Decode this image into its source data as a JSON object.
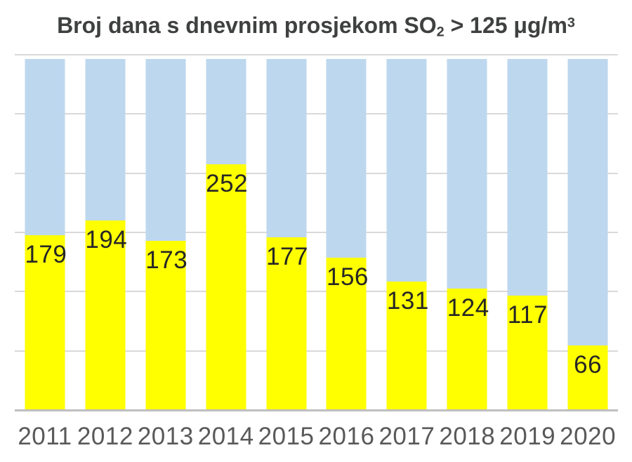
{
  "chart_data": {
    "type": "bar",
    "stacked": true,
    "title_parts": {
      "text": "Broj dana s dnevnim prosjekom SO",
      "subscript": "2",
      "tail": " > 125 ",
      "unit": "μg/m",
      "superscript": "3"
    },
    "categories": [
      "2011",
      "2012",
      "2013",
      "2014",
      "2015",
      "2016",
      "2017",
      "2018",
      "2019",
      "2020"
    ],
    "series": [
      {
        "role": "value",
        "color": "#ffff00",
        "values": [
          179,
          194,
          173,
          252,
          177,
          156,
          131,
          124,
          117,
          66
        ],
        "data_labels": true,
        "label_color": "#262626"
      },
      {
        "role": "remainder",
        "color": "#bdd7ee"
      }
    ],
    "xlabel": "",
    "ylabel": "",
    "ylim": [
      0,
      360
    ],
    "y_gridline_interval": 60,
    "y_tick_labels_visible": false,
    "grid": "horizontal",
    "legend": "none",
    "colors": {
      "title": "#3f4040",
      "gridline": "#d9d9d9",
      "axis_line": "#bfbfbf",
      "category_labels": "#595959",
      "background": "#ffffff"
    }
  }
}
